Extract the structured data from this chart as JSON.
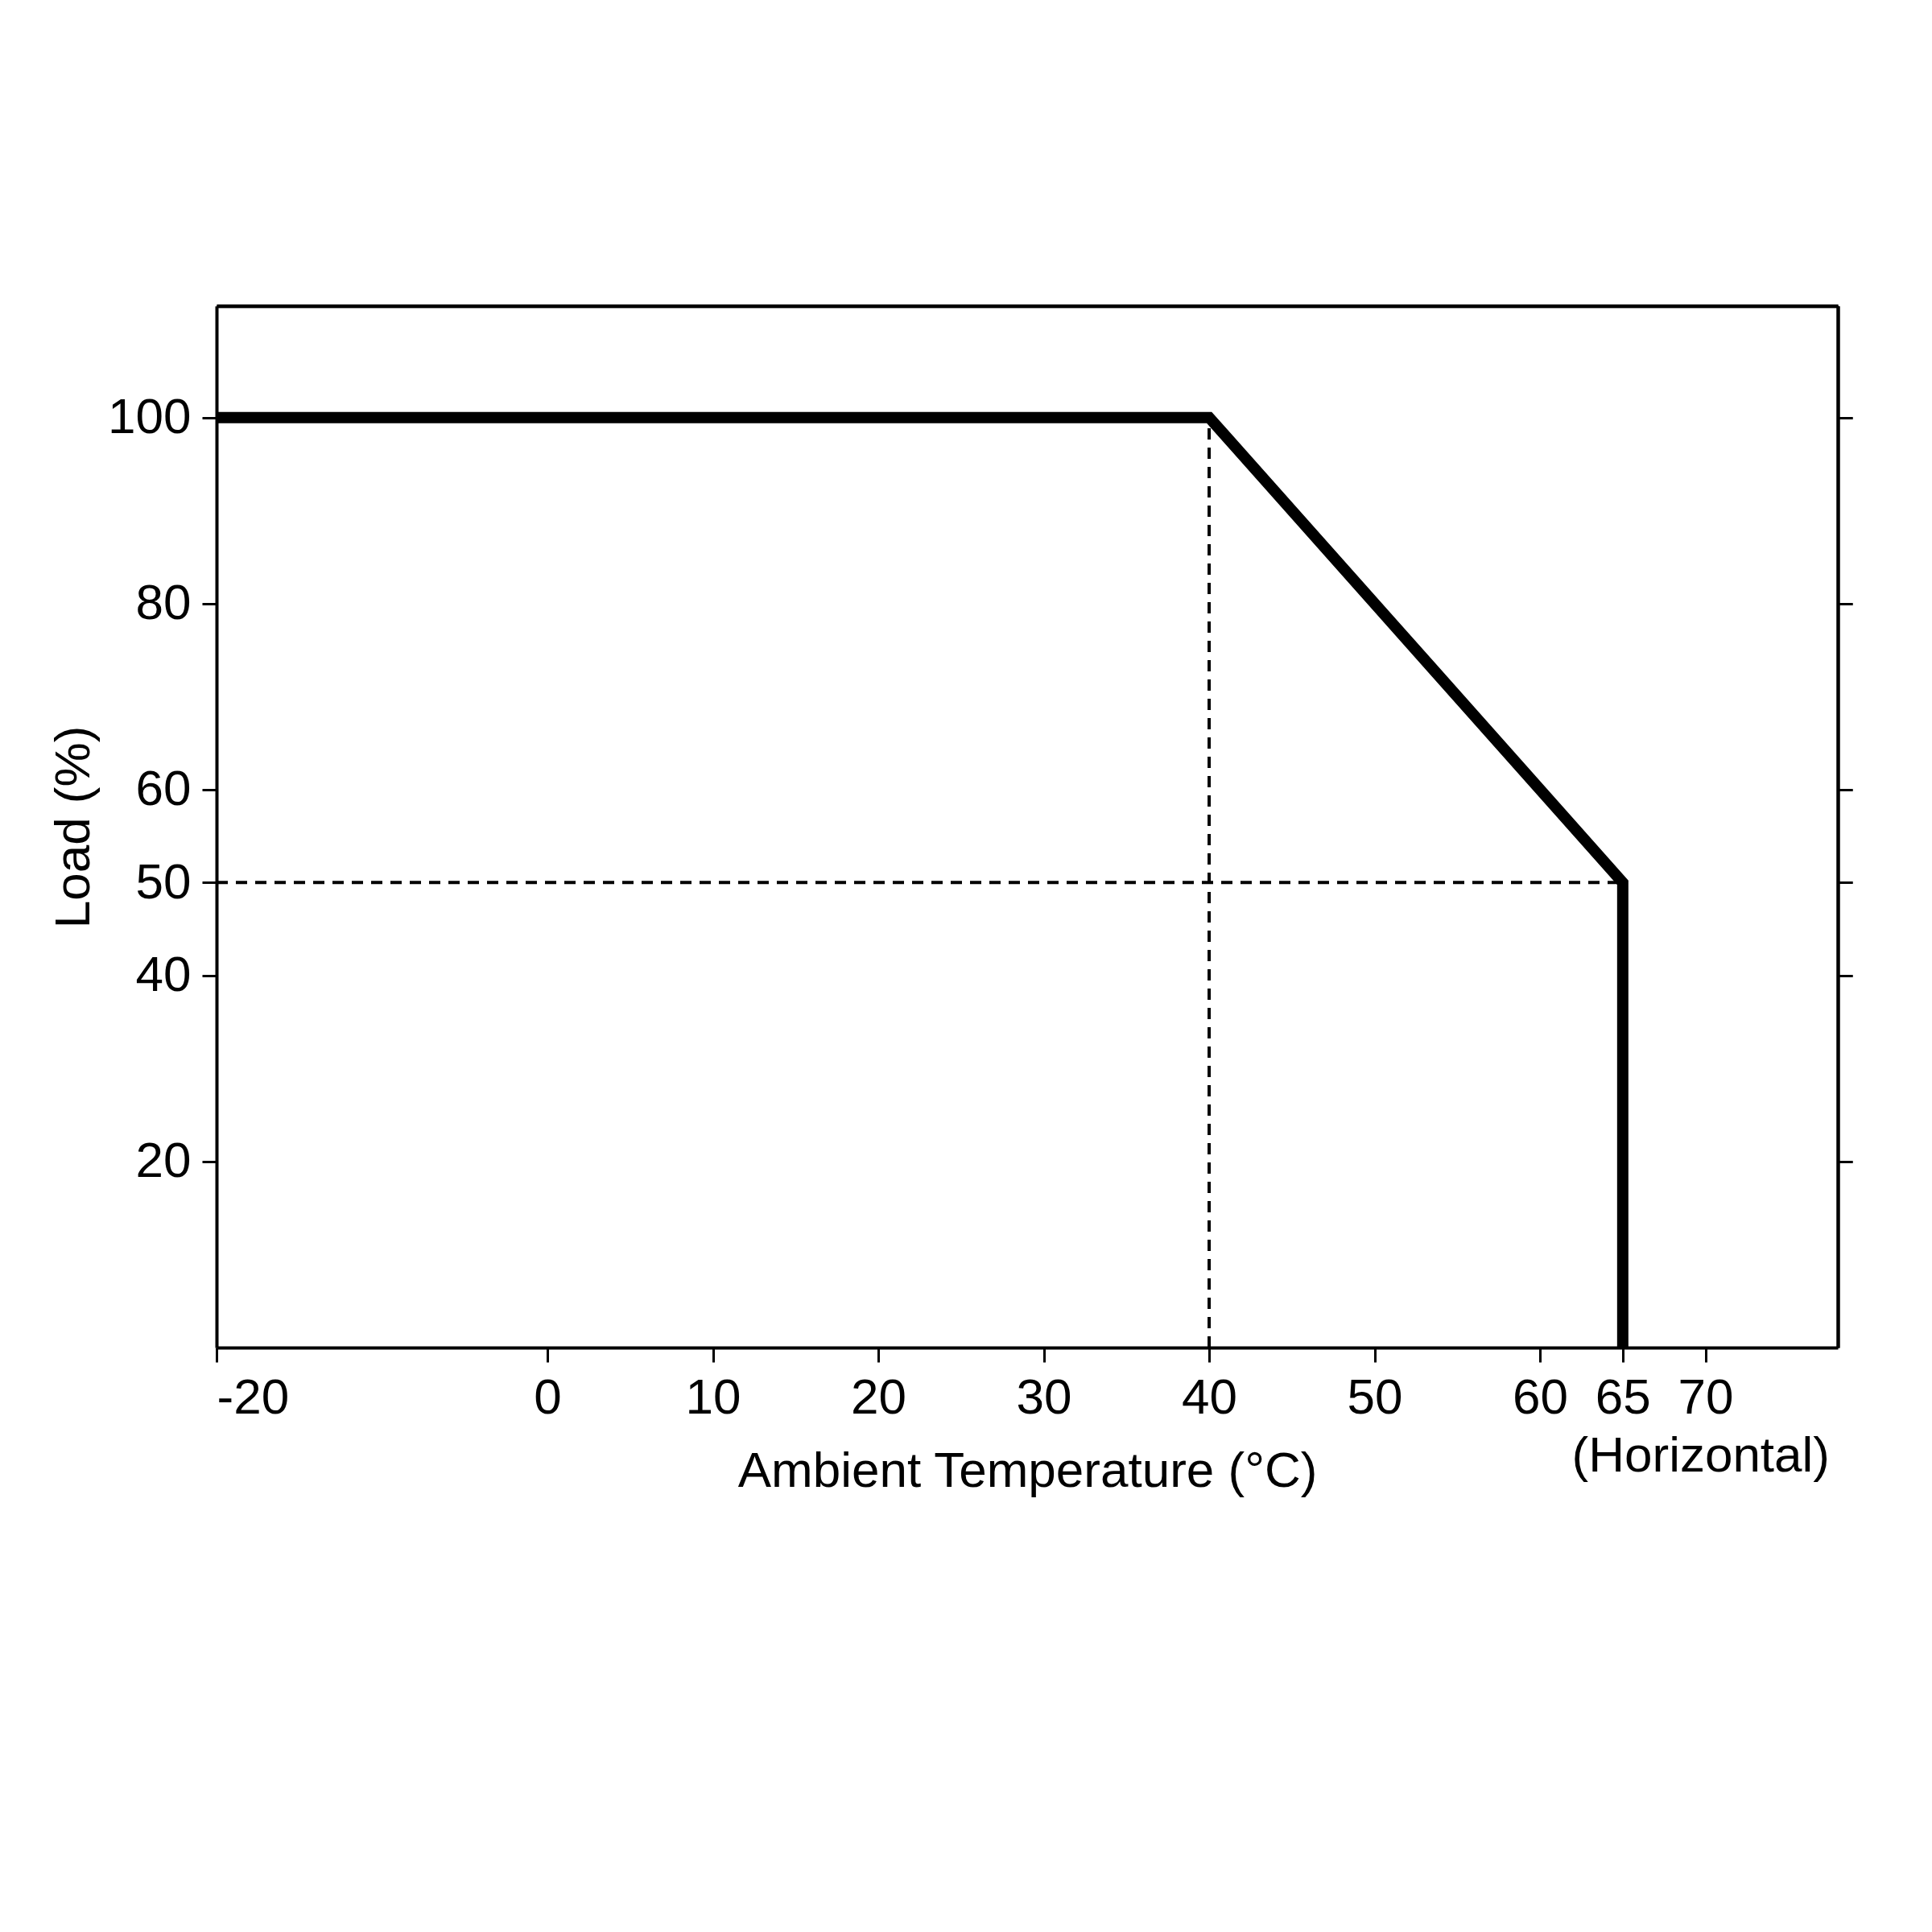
{
  "chart_data": {
    "type": "line",
    "xlabel": "Ambient Temperature (°C)",
    "ylabel": "Load (%)",
    "xlim": [
      -20,
      78
    ],
    "xticks": [
      -20,
      0,
      10,
      20,
      30,
      40,
      50,
      60,
      65,
      70
    ],
    "ylim": [
      0,
      112
    ],
    "yticks": [
      20,
      40,
      50,
      60,
      80,
      100
    ],
    "grid": false,
    "series": [
      {
        "x": [
          -20,
          40,
          65,
          65
        ],
        "values": [
          100,
          100,
          50,
          0
        ],
        "color": "#000000",
        "line_style": "solid"
      },
      {
        "x": [
          40,
          40
        ],
        "values": [
          0,
          100
        ],
        "color": "#000000",
        "line_style": "dashed"
      },
      {
        "x": [
          -20,
          65
        ],
        "values": [
          50,
          50
        ],
        "color": "#000000",
        "line_style": "dashed"
      }
    ],
    "annotations": [
      "(Horizontal)"
    ]
  }
}
